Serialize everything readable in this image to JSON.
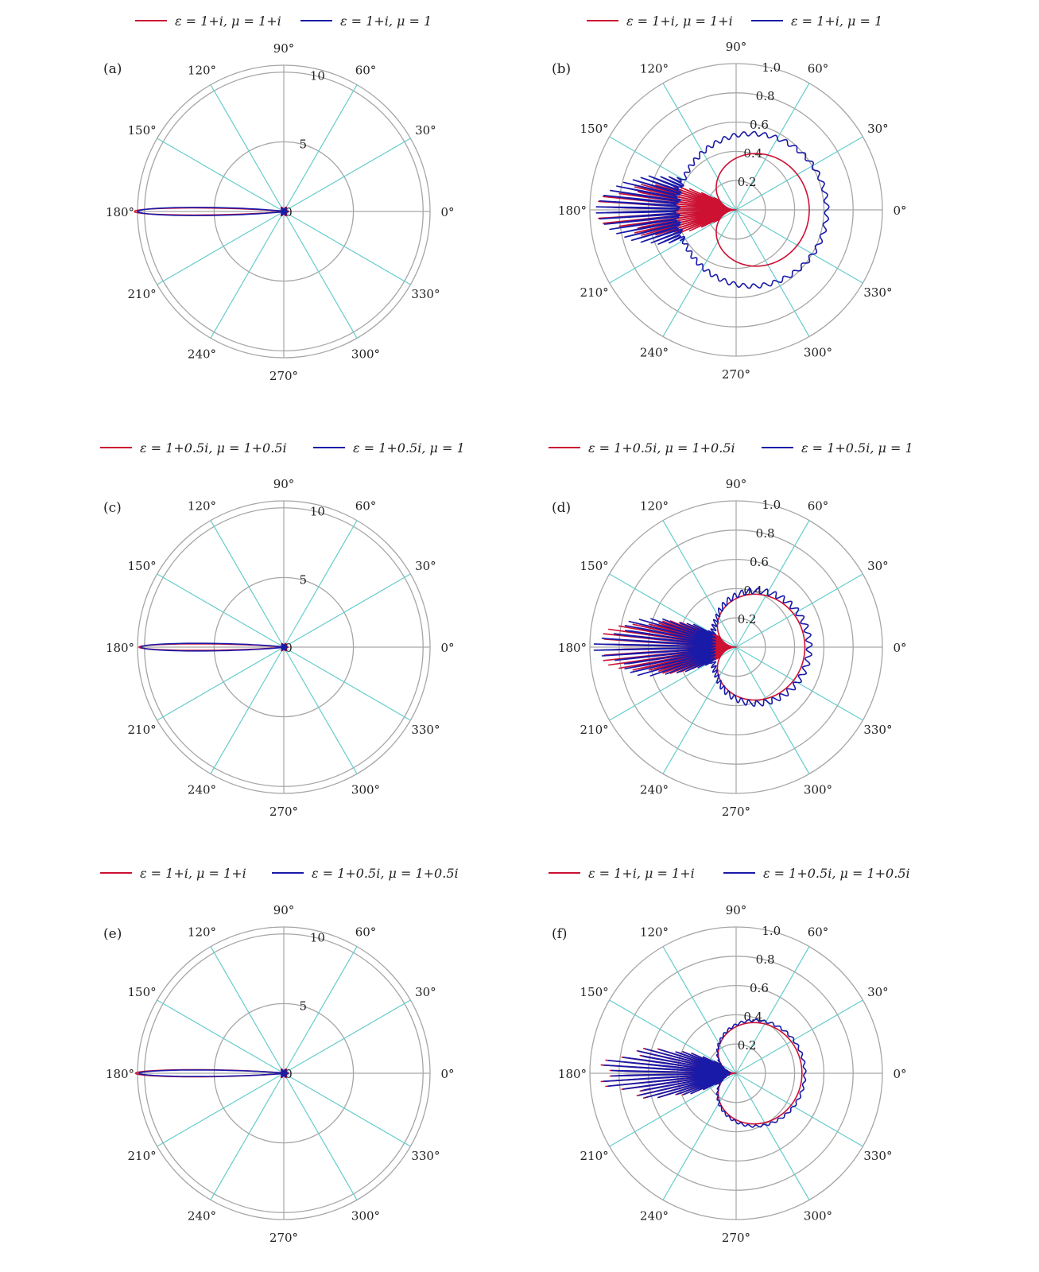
{
  "figure": {
    "panels": [
      {
        "id": "a",
        "panel_label": "(a)",
        "legend": [
          {
            "label": "ε = 1+i,  μ = 1+i",
            "color": "#cc1133"
          },
          {
            "label": "ε = 1+i,  μ = 1",
            "color": "#1a1aa8"
          }
        ]
      },
      {
        "id": "b",
        "panel_label": "(b)",
        "legend": [
          {
            "label": "ε = 1+i,  μ = 1+i",
            "color": "#cc1133"
          },
          {
            "label": "ε = 1+i,  μ = 1",
            "color": "#1a1aa8"
          }
        ]
      },
      {
        "id": "c",
        "panel_label": "(c)",
        "legend": [
          {
            "label": "ε = 1+0.5i,  μ = 1+0.5i",
            "color": "#cc1133"
          },
          {
            "label": "ε = 1+0.5i,  μ = 1",
            "color": "#1a1aa8"
          }
        ]
      },
      {
        "id": "d",
        "panel_label": "(d)",
        "legend": [
          {
            "label": "ε = 1+0.5i,  μ = 1+0.5i",
            "color": "#cc1133"
          },
          {
            "label": "ε = 1+0.5i,  μ = 1",
            "color": "#1a1aa8"
          }
        ]
      },
      {
        "id": "e",
        "panel_label": "(e)",
        "legend": [
          {
            "label": "ε = 1+i,  μ = 1+i",
            "color": "#cc1133"
          },
          {
            "label": "ε = 1+0.5i,  μ = 1+0.5i",
            "color": "#1a1aa8"
          }
        ]
      },
      {
        "id": "f",
        "panel_label": "(f)",
        "legend": [
          {
            "label": "ε = 1+i,  μ = 1+i",
            "color": "#cc1133"
          },
          {
            "label": "ε = 1+0.5i,  μ = 1+0.5i",
            "color": "#1a1aa8"
          }
        ]
      }
    ],
    "colors": {
      "grid_radial": "#66cccc",
      "grid_circle": "#a6a6a6",
      "axis_line": "#777777",
      "red_series": "#cc1133",
      "blue_series": "#1a1aa8"
    }
  },
  "chart_data": [
    {
      "type": "polar-line",
      "panel": "a",
      "angle_ticks": [
        "0°",
        "30°",
        "60°",
        "90°",
        "120°",
        "150°",
        "180°",
        "210°",
        "240°",
        "270°",
        "300°",
        "330°"
      ],
      "radial_ticks": [
        "0",
        "5",
        "10"
      ],
      "rlim": [
        0,
        10.5
      ],
      "series": [
        {
          "name": "ε = 1+i,  μ = 1+i",
          "color": "#cc1133",
          "kind": "lobe",
          "peak": 10.4,
          "peak_angle": 180,
          "halfwidth_deg": 2.2,
          "ripple_radius": 0.35
        },
        {
          "name": "ε = 1+i,  μ = 1",
          "color": "#1a1aa8",
          "kind": "lobe",
          "peak": 10.2,
          "peak_angle": 180,
          "halfwidth_deg": 2.6,
          "ripple_radius": 0.3
        }
      ]
    },
    {
      "type": "polar-line",
      "panel": "b",
      "angle_ticks": [
        "0°",
        "30°",
        "60°",
        "90°",
        "120°",
        "150°",
        "180°",
        "210°",
        "240°",
        "270°",
        "300°",
        "330°"
      ],
      "radial_ticks": [
        "0.2",
        "0.4",
        "0.6",
        "0.8",
        "1.0"
      ],
      "rlim": [
        0,
        1.0
      ],
      "series": [
        {
          "name": "ε = 1+i,  μ = 1+i",
          "color": "#cc1133",
          "kind": "cardioid",
          "backscatter": 0.0,
          "forward": 0.5,
          "spikes_max": 1.0,
          "spike_range_deg": [
            150,
            210
          ],
          "spike_count": 26
        },
        {
          "name": "ε = 1+i,  μ = 1",
          "color": "#1a1aa8",
          "kind": "cardioid",
          "backscatter": 0.4,
          "forward": 0.62,
          "ripple": 0.015,
          "spikes_max": 0.96,
          "spike_range_deg": [
            150,
            210
          ],
          "spike_count": 24
        }
      ]
    },
    {
      "type": "polar-line",
      "panel": "c",
      "angle_ticks": [
        "0°",
        "30°",
        "60°",
        "90°",
        "120°",
        "150°",
        "180°",
        "210°",
        "240°",
        "270°",
        "300°",
        "330°"
      ],
      "radial_ticks": [
        "0",
        "5",
        "10"
      ],
      "rlim": [
        0,
        10.5
      ],
      "series": [
        {
          "name": "ε = 1+0.5i,  μ = 1+0.5i",
          "color": "#cc1133",
          "kind": "lobe",
          "peak": 10.1,
          "peak_angle": 180,
          "halfwidth_deg": 2.1,
          "ripple_radius": 0.3
        },
        {
          "name": "ε = 1+0.5i,  μ = 1",
          "color": "#1a1aa8",
          "kind": "lobe",
          "peak": 10.0,
          "peak_angle": 180,
          "halfwidth_deg": 2.5,
          "ripple_radius": 0.25
        }
      ]
    },
    {
      "type": "polar-line",
      "panel": "d",
      "angle_ticks": [
        "0°",
        "30°",
        "60°",
        "90°",
        "120°",
        "150°",
        "180°",
        "210°",
        "240°",
        "270°",
        "300°",
        "330°"
      ],
      "radial_ticks": [
        "0.2",
        "0.4",
        "0.6",
        "0.8",
        "1.0"
      ],
      "rlim": [
        0,
        1.0
      ],
      "series": [
        {
          "name": "ε = 1+0.5i,  μ = 1+0.5i",
          "color": "#cc1133",
          "kind": "cardioid",
          "backscatter": 0.0,
          "forward": 0.47,
          "spikes_max": 1.0,
          "spike_range_deg": [
            148,
            212
          ],
          "spike_count": 28
        },
        {
          "name": "ε = 1+0.5i,  μ = 1",
          "color": "#1a1aa8",
          "kind": "cardioid",
          "backscatter": 0.16,
          "forward": 0.5,
          "ripple": 0.02,
          "spikes_max": 0.98,
          "spike_range_deg": [
            148,
            212
          ],
          "spike_count": 26
        }
      ]
    },
    {
      "type": "polar-line",
      "panel": "e",
      "angle_ticks": [
        "0°",
        "30°",
        "60°",
        "90°",
        "120°",
        "150°",
        "180°",
        "210°",
        "240°",
        "270°",
        "300°",
        "330°"
      ],
      "radial_ticks": [
        "0",
        "5",
        "10"
      ],
      "rlim": [
        0,
        10.5
      ],
      "series": [
        {
          "name": "ε = 1+i,  μ = 1+i",
          "color": "#cc1133",
          "kind": "lobe",
          "peak": 10.3,
          "peak_angle": 180,
          "halfwidth_deg": 2.2,
          "ripple_radius": 0.35
        },
        {
          "name": "ε = 1+0.5i,  μ = 1+0.5i",
          "color": "#1a1aa8",
          "kind": "lobe",
          "peak": 10.1,
          "peak_angle": 180,
          "halfwidth_deg": 2.1,
          "ripple_radius": 0.3
        }
      ]
    },
    {
      "type": "polar-line",
      "panel": "f",
      "angle_ticks": [
        "0°",
        "30°",
        "60°",
        "90°",
        "120°",
        "150°",
        "180°",
        "210°",
        "240°",
        "270°",
        "300°",
        "330°"
      ],
      "radial_ticks": [
        "0.2",
        "0.4",
        "0.6",
        "0.8",
        "1.0"
      ],
      "rlim": [
        0,
        1.0
      ],
      "series": [
        {
          "name": "ε = 1+i,  μ = 1+i",
          "color": "#cc1133",
          "kind": "cardioid",
          "backscatter": 0.0,
          "forward": 0.45,
          "spikes_max": 0.98,
          "spike_range_deg": [
            150,
            210
          ],
          "spike_count": 26
        },
        {
          "name": "ε = 1+0.5i,  μ = 1+0.5i",
          "color": "#1a1aa8",
          "kind": "cardioid",
          "backscatter": 0.05,
          "forward": 0.47,
          "ripple": 0.008,
          "spikes_max": 0.96,
          "spike_range_deg": [
            150,
            210
          ],
          "spike_count": 26
        }
      ]
    }
  ]
}
